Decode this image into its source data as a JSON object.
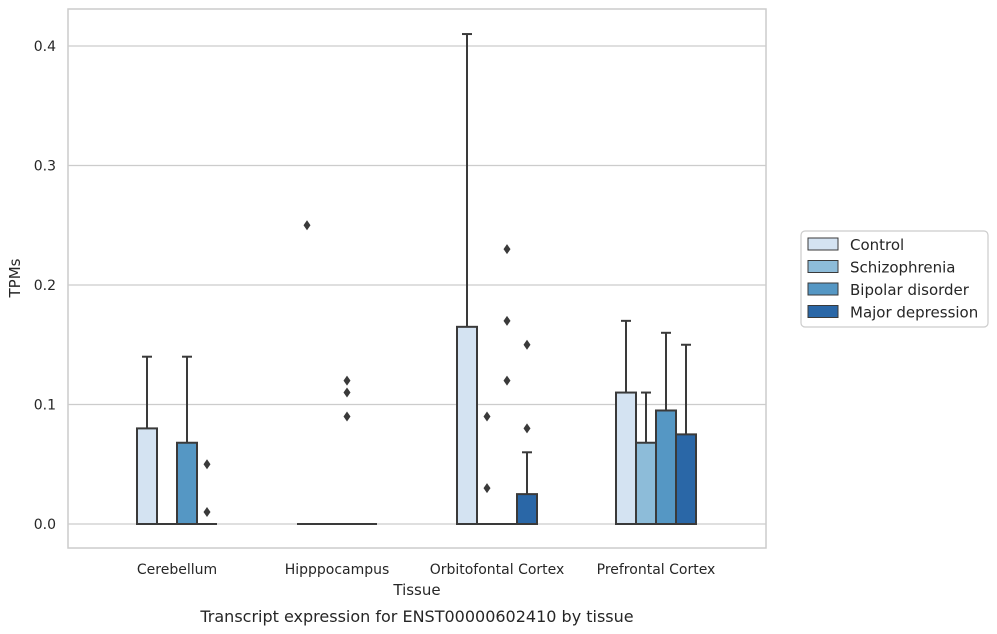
{
  "chart_data": {
    "type": "bar",
    "xlabel": "Tissue",
    "ylabel": "TPMs",
    "caption": "Transcript expression for ENST00000602410 by tissue",
    "ylim": [
      -0.02,
      0.43
    ],
    "yticks": [
      0.0,
      0.1,
      0.2,
      0.3,
      0.4
    ],
    "ytick_labels": [
      "0.0",
      "0.1",
      "0.2",
      "0.3",
      "0.4"
    ],
    "grid": "horizontal",
    "legend_position": "right",
    "categories": [
      "Cerebellum",
      "Hipppocampus",
      "Orbitofontal Cortex",
      "Prefrontal Cortex"
    ],
    "series": [
      {
        "name": "Control",
        "color": "#d4e3f2",
        "values": [
          0.08,
          0.0,
          0.165,
          0.11
        ],
        "error_upper": [
          0.14,
          null,
          0.41,
          0.17
        ],
        "outliers": [
          [],
          [
            0.25
          ],
          [],
          []
        ]
      },
      {
        "name": "Schizophrenia",
        "color": "#8dbcd9",
        "values": [
          0.0,
          0.0,
          0.0,
          0.068
        ],
        "error_upper": [
          null,
          null,
          null,
          0.11
        ],
        "outliers": [
          [],
          [],
          [
            0.09,
            0.03
          ],
          []
        ]
      },
      {
        "name": "Bipolar disorder",
        "color": "#5597c4",
        "values": [
          0.068,
          0.0,
          0.0,
          0.095
        ],
        "error_upper": [
          0.14,
          null,
          null,
          0.16
        ],
        "outliers": [
          [],
          [
            0.12,
            0.11,
            0.09
          ],
          [
            0.23,
            0.17,
            0.12
          ],
          []
        ]
      },
      {
        "name": "Major depression",
        "color": "#2a67a7",
        "values": [
          0.0,
          0.0,
          0.025,
          0.075
        ],
        "error_upper": [
          null,
          null,
          0.06,
          0.15
        ],
        "outliers": [
          [
            0.05,
            0.01
          ],
          [],
          [
            0.15,
            0.08
          ],
          []
        ]
      }
    ]
  },
  "colors": {
    "edge": "#3a3a3a",
    "grid": "#cccccc",
    "frame": "#cccccc"
  }
}
